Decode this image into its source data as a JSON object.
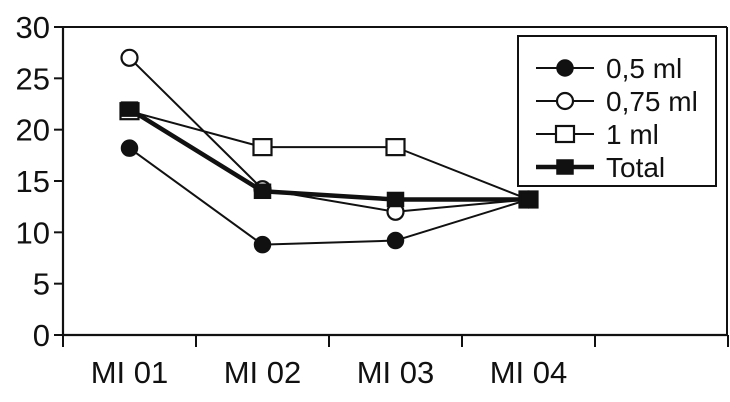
{
  "chart_data": {
    "type": "line",
    "categories": [
      "MI 01",
      "MI 02",
      "MI 03",
      "MI 04"
    ],
    "ylim": [
      0,
      30
    ],
    "yticks": [
      0,
      5,
      10,
      15,
      20,
      25,
      30
    ],
    "grid": false,
    "legend_position": "top-right",
    "series": [
      {
        "name": "0,5 ml",
        "values": [
          18.2,
          8.8,
          9.2,
          13.2
        ],
        "marker": "filled-circle",
        "line": "thin"
      },
      {
        "name": "0,75 ml",
        "values": [
          27.0,
          14.2,
          12.0,
          13.2
        ],
        "marker": "open-circle",
        "line": "thin"
      },
      {
        "name": "1 ml",
        "values": [
          21.8,
          18.3,
          18.3,
          13.2
        ],
        "marker": "open-square",
        "line": "thin"
      },
      {
        "name": "Total",
        "values": [
          22.0,
          14.0,
          13.2,
          13.2
        ],
        "marker": "filled-square",
        "line": "thick"
      }
    ]
  }
}
